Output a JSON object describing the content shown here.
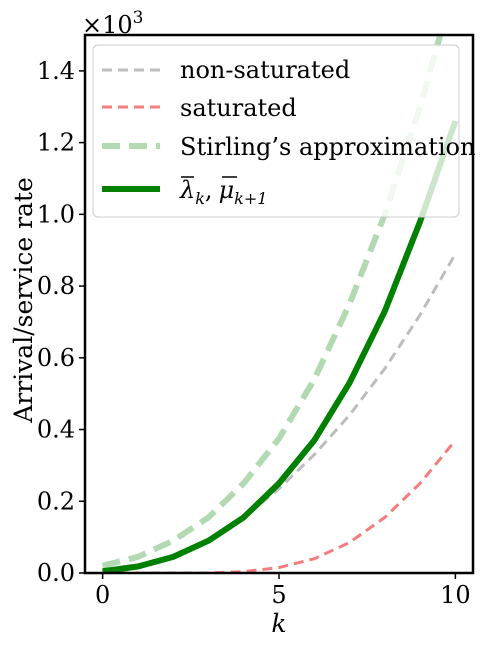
{
  "chart_data": {
    "type": "line",
    "multiplier_label": "×10",
    "multiplier_exp": "3",
    "xlabel": "k",
    "ylabel": "Arrival/service rate",
    "xlim": [
      -0.5,
      10.5
    ],
    "ylim": [
      0,
      1.5
    ],
    "xticks": [
      0,
      5,
      10
    ],
    "xtick_labels": [
      "0",
      "5",
      "10"
    ],
    "yticks": [
      0.0,
      0.2,
      0.4,
      0.6,
      0.8,
      1.0,
      1.2,
      1.4
    ],
    "ytick_labels": [
      "0.0",
      "0.2",
      "0.4",
      "0.6",
      "0.8",
      "1.0",
      "1.2",
      "1.4"
    ],
    "grid": false,
    "legend_position": "top-left",
    "series": [
      {
        "name": "non-saturated",
        "color": "#bdbdbd",
        "style": "dashed",
        "x": [
          0,
          1,
          2,
          3,
          4,
          5,
          6,
          7,
          8,
          9,
          10
        ],
        "y": [
          0.005,
          0.018,
          0.045,
          0.09,
          0.155,
          0.235,
          0.33,
          0.44,
          0.57,
          0.72,
          0.89
        ]
      },
      {
        "name": "saturated",
        "color": "#f47c7c",
        "style": "dashed",
        "x": [
          0,
          1,
          2,
          3,
          4,
          5,
          6,
          7,
          8,
          9,
          10
        ],
        "y": [
          0.0,
          0.0,
          0.0,
          0.0,
          0.004,
          0.015,
          0.04,
          0.085,
          0.155,
          0.25,
          0.37
        ]
      },
      {
        "name": "Stirling’s approximation",
        "color": "#b3d9b3",
        "style": "dashed-thick",
        "x": [
          0,
          1,
          2,
          3,
          4,
          5,
          6,
          7,
          8,
          9,
          10
        ],
        "y": [
          0.02,
          0.045,
          0.09,
          0.155,
          0.25,
          0.375,
          0.54,
          0.75,
          1.0,
          1.3,
          1.65
        ]
      },
      {
        "name": "λ_k, μ_{k+1}",
        "color": "#008000",
        "style": "solid-thick",
        "x": [
          0,
          1,
          2,
          3,
          4,
          5,
          6,
          7,
          8,
          9,
          10
        ],
        "y": [
          0.005,
          0.018,
          0.045,
          0.09,
          0.155,
          0.25,
          0.37,
          0.53,
          0.73,
          0.98,
          1.26
        ]
      }
    ],
    "legend": {
      "items": [
        {
          "label": "non-saturated"
        },
        {
          "label": "saturated"
        },
        {
          "label": "Stirling’s approximation"
        },
        {
          "label_lambda": "λ",
          "label_lambda_sub": "k",
          "label_sep": ",",
          "label_mu": "μ",
          "label_mu_sub": "k+1"
        }
      ]
    }
  }
}
